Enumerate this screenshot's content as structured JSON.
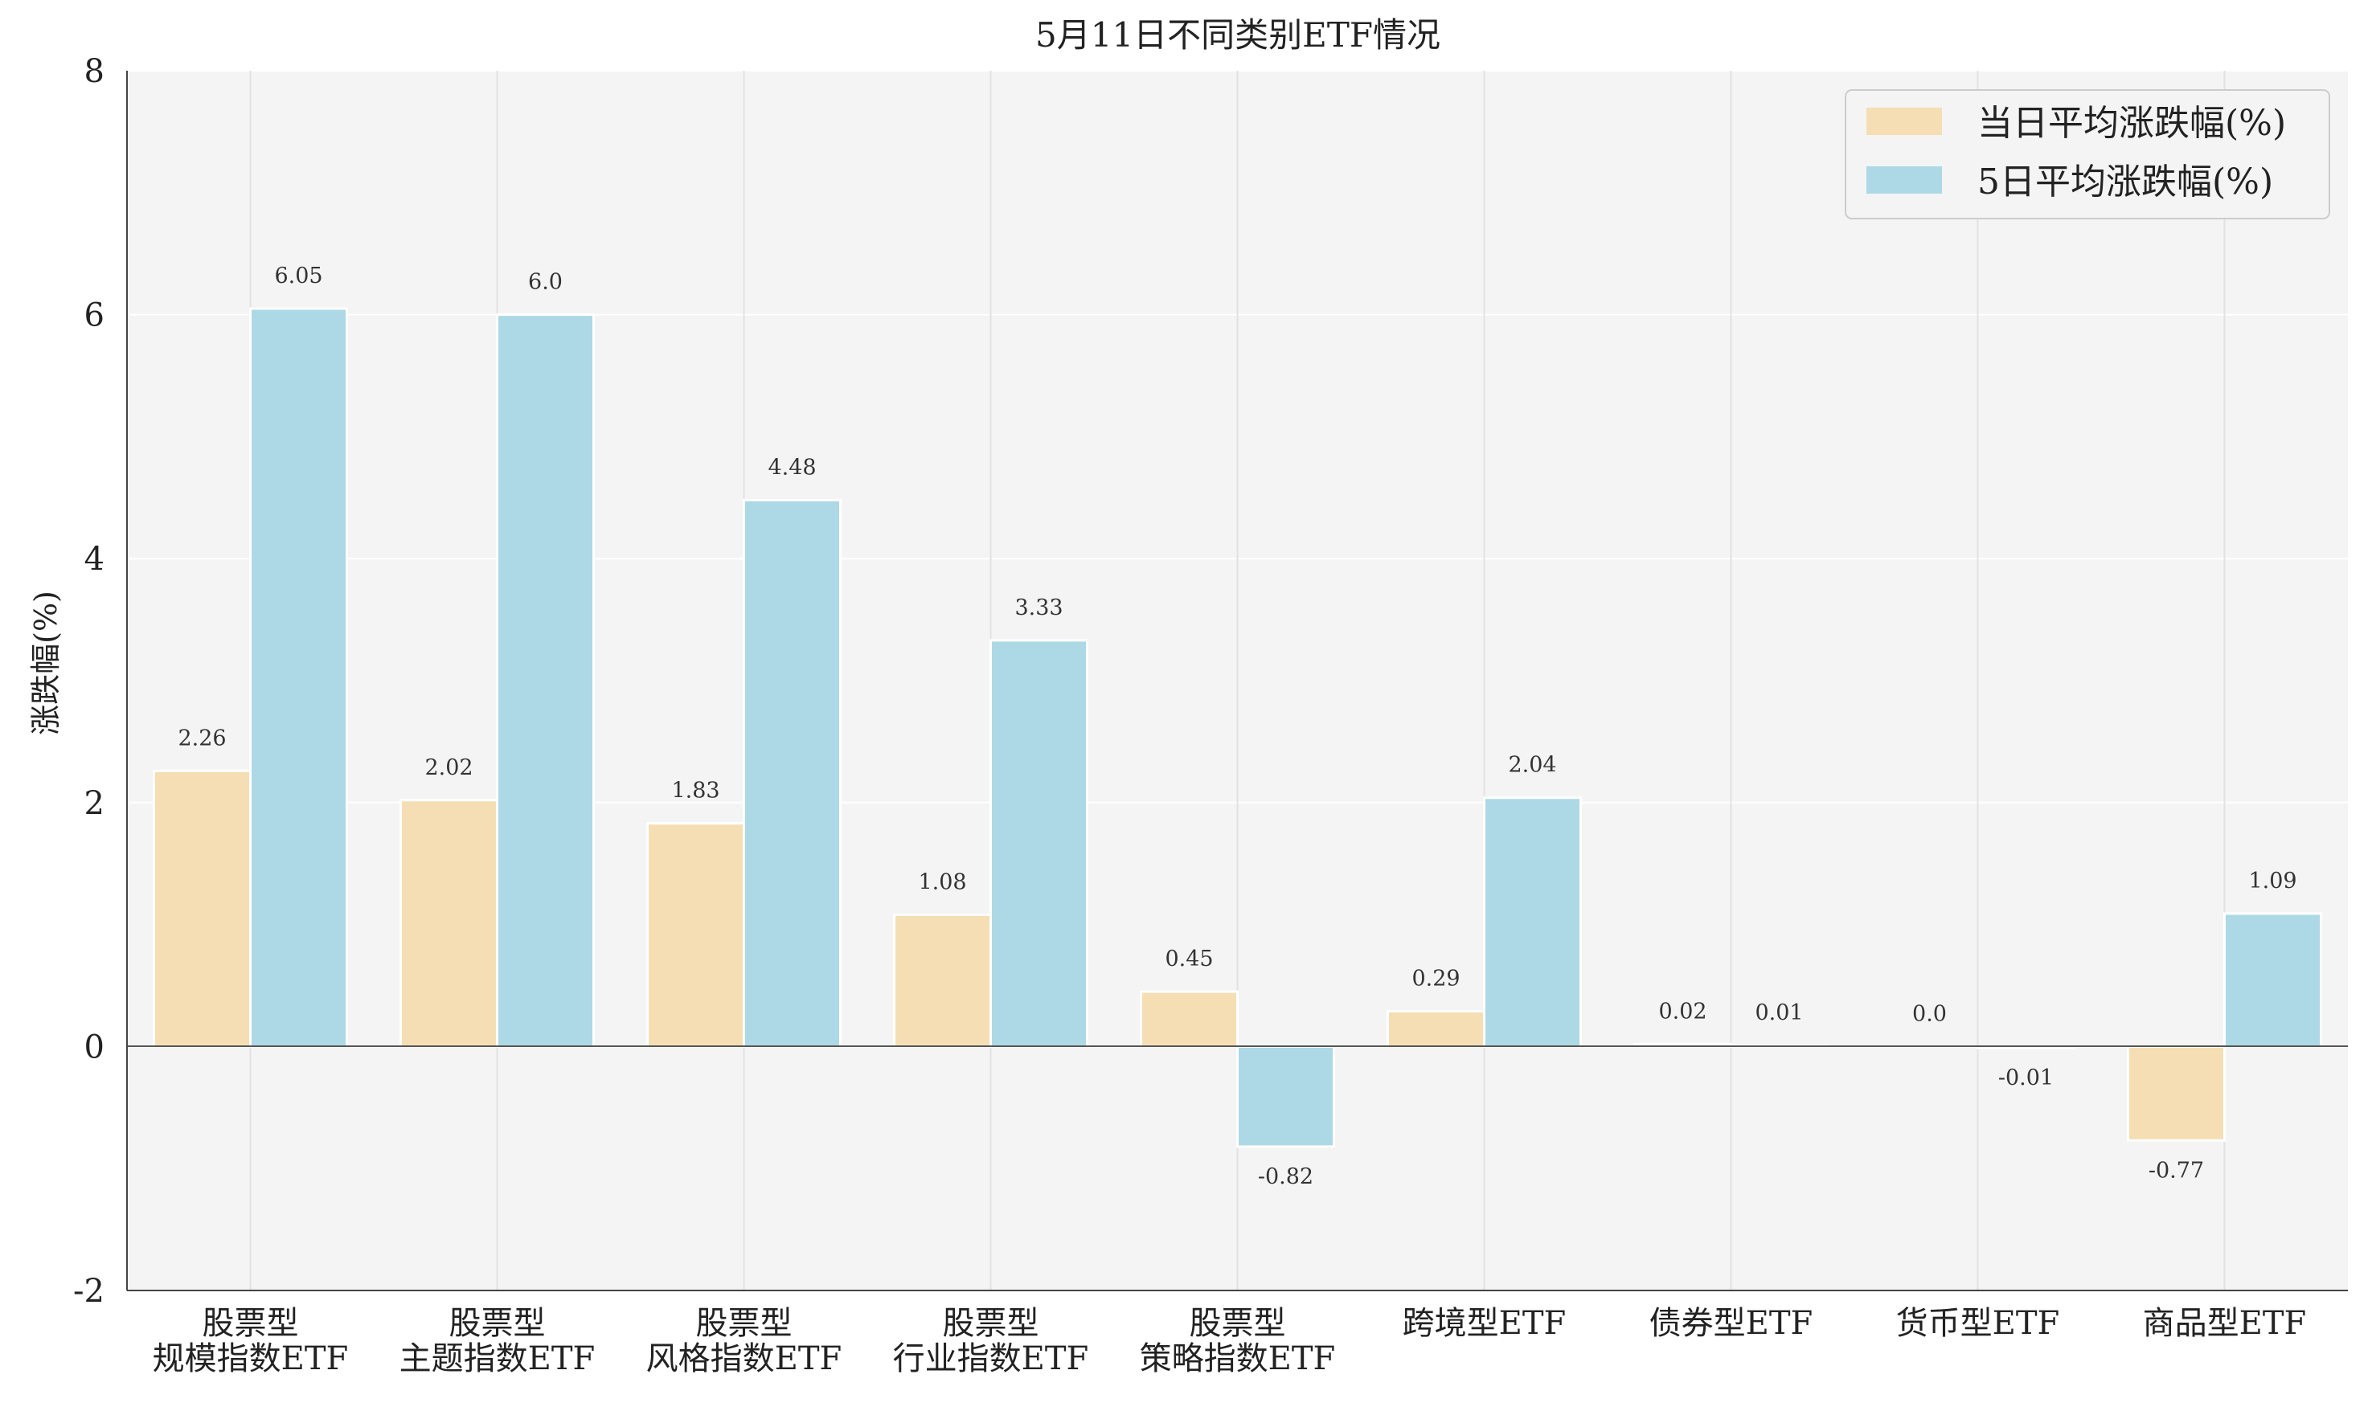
{
  "chart_data": {
    "type": "bar",
    "title": "5月11日不同类别ETF情况",
    "xlabel": "",
    "ylabel": "涨跌幅(%)",
    "ylim": [
      -2,
      8
    ],
    "yticks": [
      "-2",
      "0",
      "2",
      "4",
      "6",
      "8"
    ],
    "grid": true,
    "legend_position": "top-right",
    "categories": [
      [
        "股票型",
        "规模指数ETF"
      ],
      [
        "股票型",
        "主题指数ETF"
      ],
      [
        "股票型",
        "风格指数ETF"
      ],
      [
        "股票型",
        "行业指数ETF"
      ],
      [
        "股票型",
        "策略指数ETF"
      ],
      [
        "跨境型ETF"
      ],
      [
        "债券型ETF"
      ],
      [
        "货币型ETF"
      ],
      [
        "商品型ETF"
      ]
    ],
    "series": [
      {
        "name": "当日平均涨跌幅(%)",
        "color": "#f5deb3",
        "values": [
          2.26,
          2.02,
          1.83,
          1.08,
          0.45,
          0.29,
          0.02,
          0.0,
          -0.77
        ],
        "labels": [
          "2.26",
          "2.02",
          "1.83",
          "1.08",
          "0.45",
          "0.29",
          "0.02",
          "0.0",
          "-0.77"
        ]
      },
      {
        "name": "5日平均涨跌幅(%)",
        "color": "#add8e6",
        "values": [
          6.05,
          6.0,
          4.48,
          3.33,
          -0.82,
          2.04,
          0.01,
          -0.01,
          1.09
        ],
        "labels": [
          "6.05",
          "6.0",
          "4.48",
          "3.33",
          "-0.82",
          "2.04",
          "0.01",
          "-0.01",
          "1.09"
        ]
      }
    ]
  }
}
